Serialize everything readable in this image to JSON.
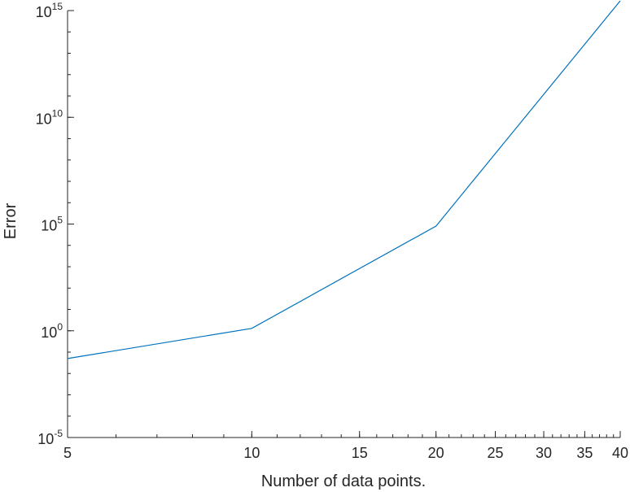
{
  "chart_data": {
    "type": "line",
    "title": "",
    "xlabel": "Number of data points.",
    "ylabel": "Error",
    "xscale": "log",
    "yscale": "log",
    "xlim": [
      5,
      40
    ],
    "ylim": [
      1e-05,
      1000000000000000.0
    ],
    "grid": false,
    "legend": "none",
    "x_ticks": [
      {
        "value": 5,
        "label": "5"
      },
      {
        "value": 10,
        "label": "10"
      },
      {
        "value": 15,
        "label": "15"
      },
      {
        "value": 20,
        "label": "20"
      },
      {
        "value": 25,
        "label": "25"
      },
      {
        "value": 30,
        "label": "30"
      },
      {
        "value": 35,
        "label": "35"
      },
      {
        "value": 40,
        "label": "40"
      }
    ],
    "y_ticks": [
      {
        "value": 1e-05,
        "base": "10",
        "exp": "-5"
      },
      {
        "value": 1,
        "base": "10",
        "exp": "0"
      },
      {
        "value": 100000.0,
        "base": "10",
        "exp": "5"
      },
      {
        "value": 10000000000.0,
        "base": "10",
        "exp": "10"
      },
      {
        "value": 1000000000000000.0,
        "base": "10",
        "exp": "15"
      }
    ],
    "series": [
      {
        "color": "#0072bd",
        "x": [
          5,
          10,
          20,
          40
        ],
        "y": [
          0.05,
          1.3,
          80000.0,
          3000000000000000.0
        ]
      }
    ]
  }
}
